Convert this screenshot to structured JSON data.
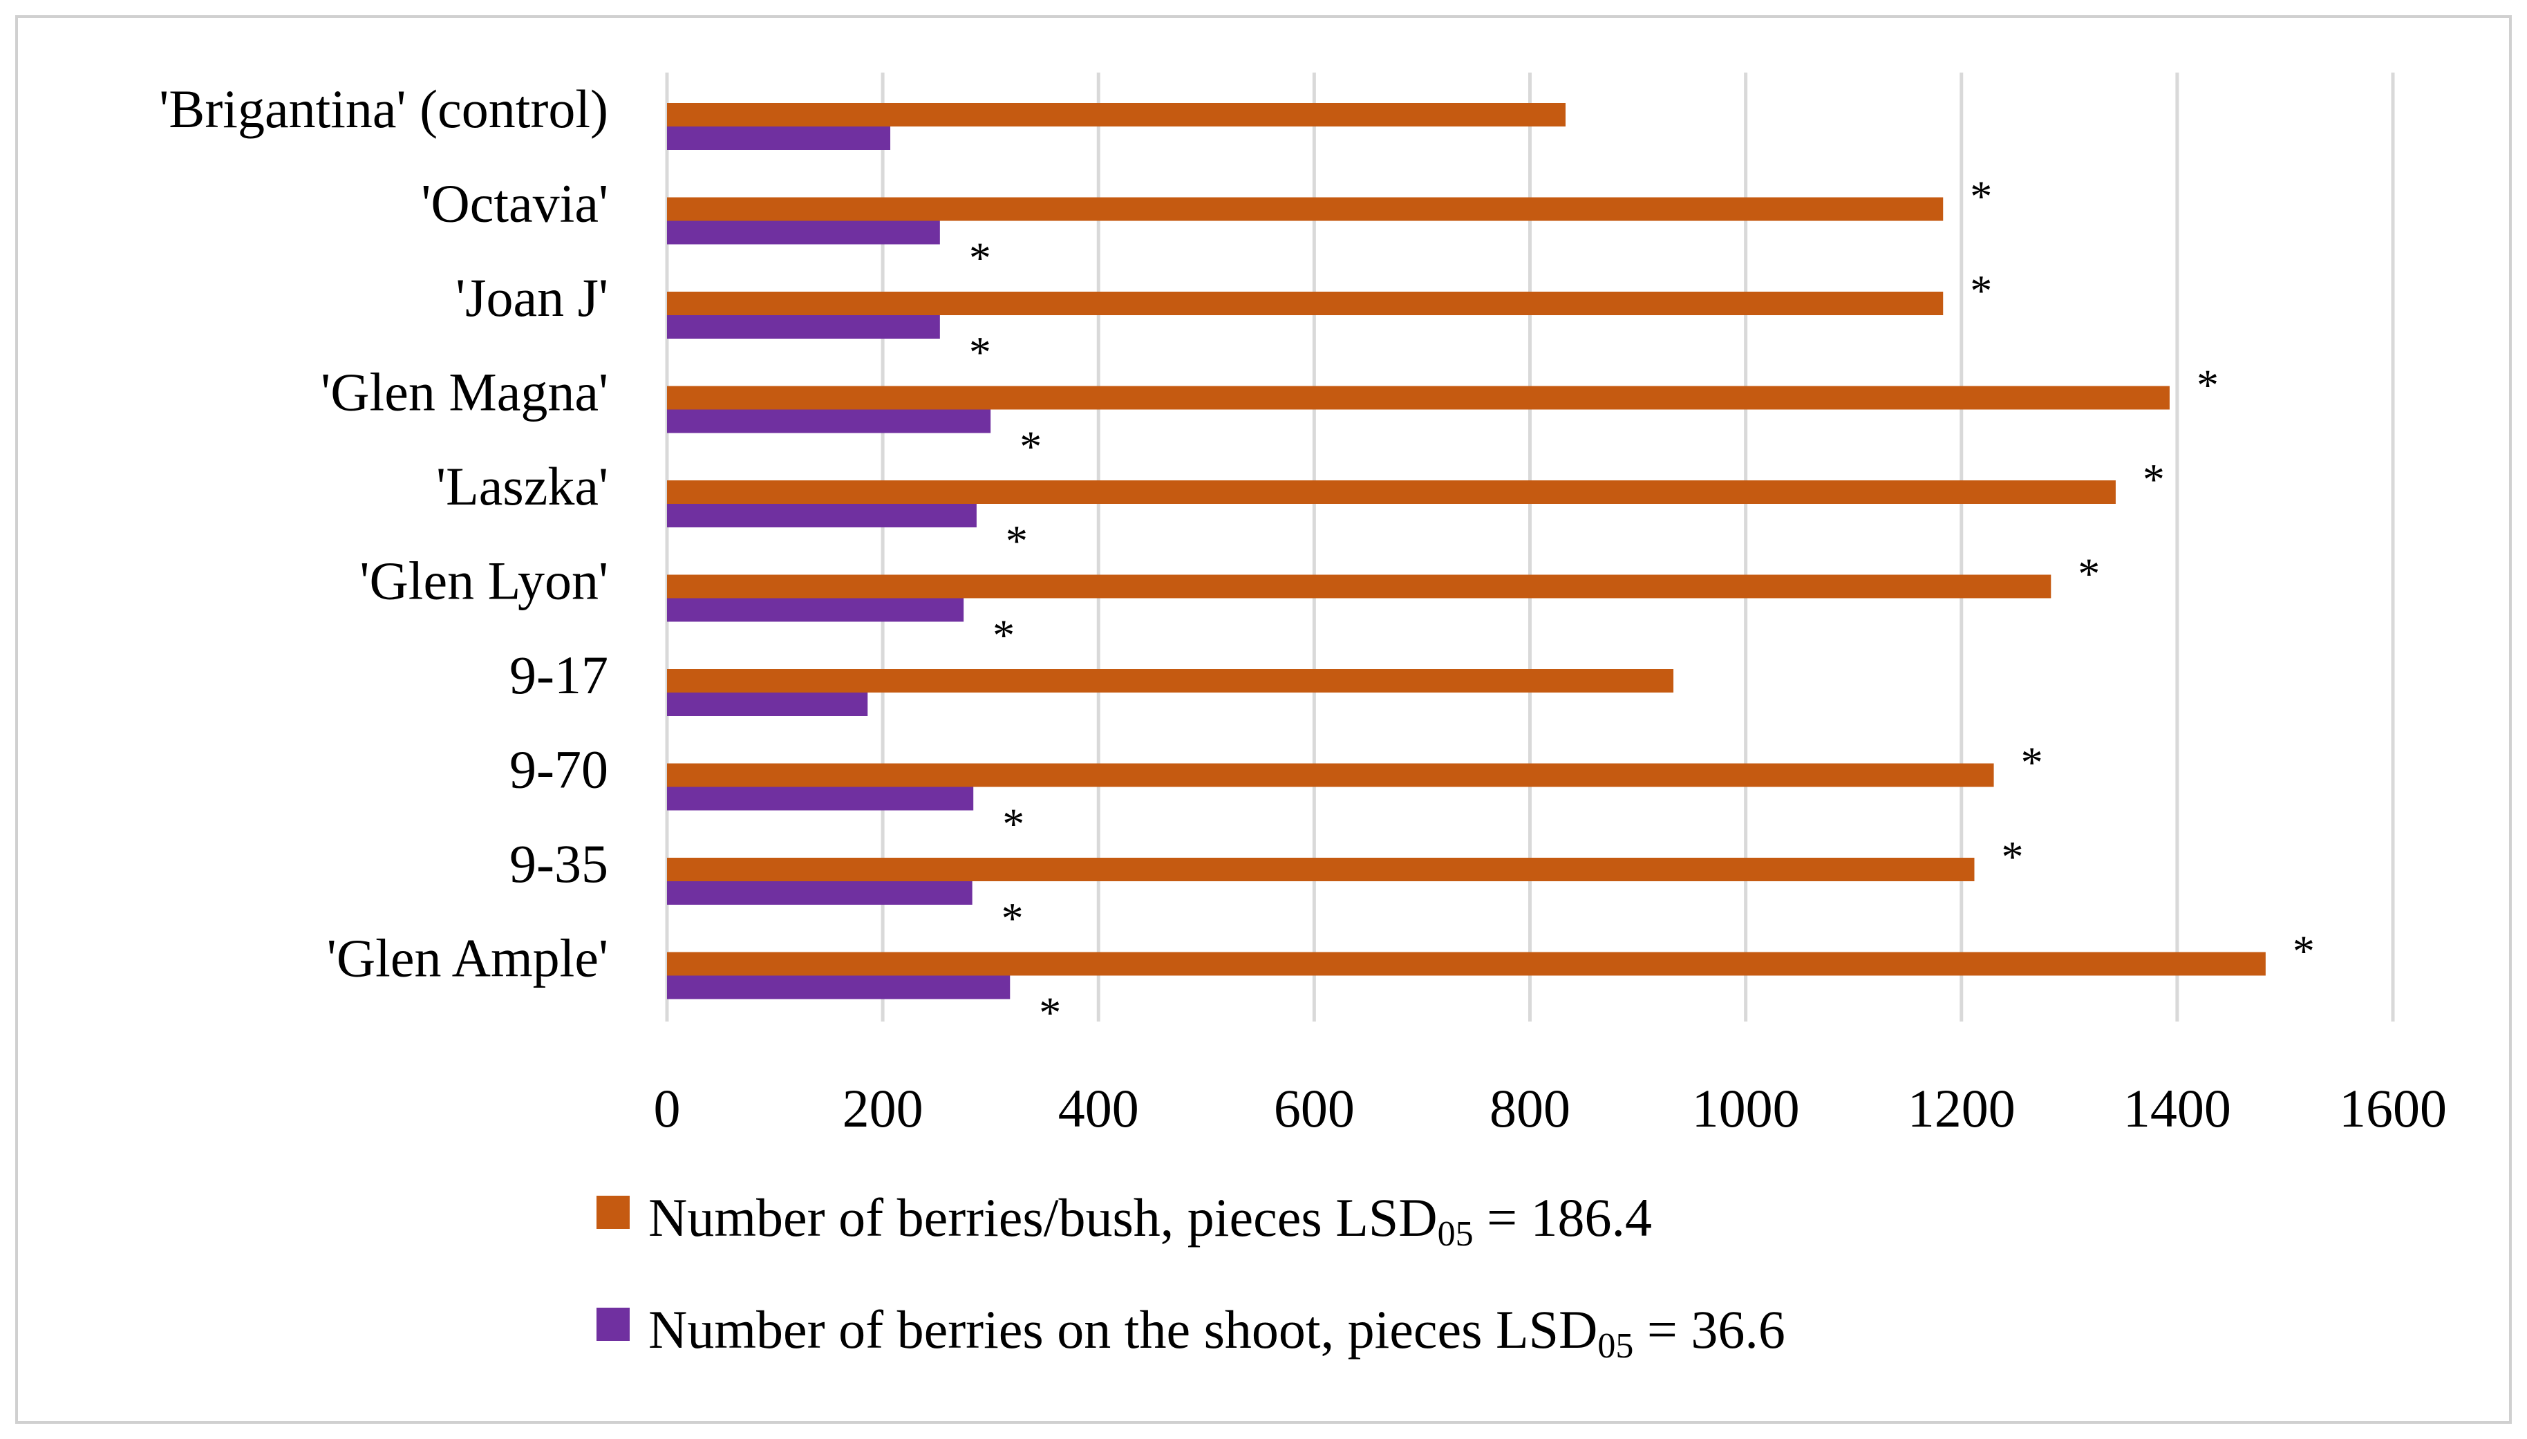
{
  "chart_data": {
    "type": "bar",
    "orientation": "horizontal",
    "title": "",
    "xlabel": "",
    "ylabel": "",
    "xlim": [
      0,
      1600
    ],
    "xticks": [
      0,
      200,
      400,
      600,
      800,
      1000,
      1200,
      1400,
      1600
    ],
    "grid": "vertical",
    "legend_position": "bottom",
    "categories": [
      "'Brigantina' (control)",
      "'Octavia'",
      "'Joan J'",
      "'Glen Magna'",
      "'Laszka'",
      "'Glen Lyon'",
      "9-17",
      "9-70",
      "9-35",
      "'Glen Ample'"
    ],
    "series": [
      {
        "name": "Number of berries/bush, pieces LSD",
        "legend_subscript": "05",
        "legend_suffix": " = 186.4",
        "color": "#c55a11",
        "values": [
          833,
          1183,
          1183,
          1393,
          1343,
          1283,
          933,
          1230,
          1212,
          1482
        ],
        "significant": [
          false,
          true,
          true,
          true,
          true,
          true,
          false,
          true,
          true,
          true
        ]
      },
      {
        "name": "Number of berries on the shoot, pieces LSD",
        "legend_subscript": "05",
        "legend_suffix": " = 36.6",
        "color": "#7030a0",
        "values": [
          207,
          253,
          253,
          300,
          287,
          275,
          186,
          284,
          283,
          318
        ],
        "significant": [
          false,
          true,
          true,
          true,
          true,
          true,
          false,
          true,
          true,
          true
        ]
      }
    ],
    "significance_marker": "*"
  }
}
